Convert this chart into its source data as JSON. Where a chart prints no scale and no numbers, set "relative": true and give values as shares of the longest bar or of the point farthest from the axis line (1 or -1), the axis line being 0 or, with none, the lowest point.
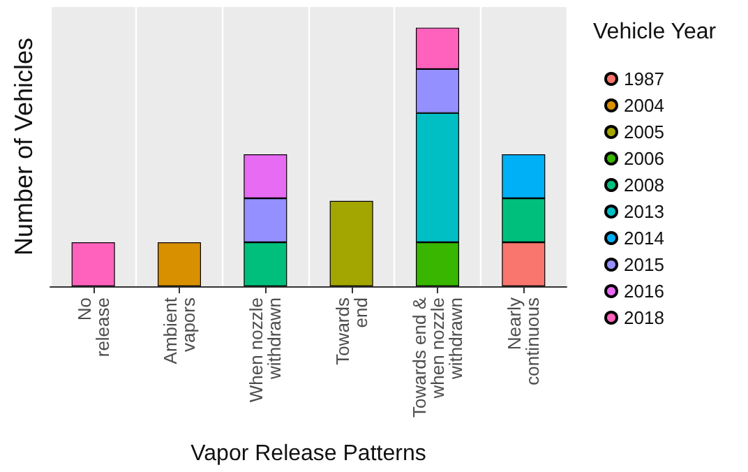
{
  "chart_data": {
    "type": "bar",
    "stacked": true,
    "relative": true,
    "xlabel": "Vapor Release Patterns",
    "ylabel": "Number of Vehicles",
    "legend_title": "Vehicle Year",
    "legend": "right",
    "grid": "x",
    "categories": [
      "No\nrelease",
      "Ambient\nvapors",
      "When nozzle\nwithdrawn",
      "Towards\nend",
      "Towards end &\nwhen nozzle\nwithdrawn",
      "Nearly\ncontinuous"
    ],
    "series": [
      {
        "name": "1987",
        "color": "#f8766d",
        "values": [
          null,
          null,
          null,
          null,
          null,
          0.17
        ]
      },
      {
        "name": "2004",
        "color": "#d89000",
        "values": [
          null,
          0.17,
          null,
          null,
          null,
          null
        ]
      },
      {
        "name": "2005",
        "color": "#a3a500",
        "values": [
          null,
          null,
          null,
          0.33,
          null,
          null
        ]
      },
      {
        "name": "2006",
        "color": "#39b600",
        "values": [
          null,
          null,
          null,
          null,
          0.17,
          null
        ]
      },
      {
        "name": "2008",
        "color": "#00bf7d",
        "values": [
          null,
          null,
          0.17,
          null,
          null,
          0.17
        ]
      },
      {
        "name": "2013",
        "color": "#00bfc4",
        "values": [
          null,
          null,
          null,
          null,
          0.5,
          null
        ]
      },
      {
        "name": "2014",
        "color": "#00b0f6",
        "values": [
          null,
          null,
          null,
          null,
          null,
          0.17
        ]
      },
      {
        "name": "2015",
        "color": "#9590ff",
        "values": [
          null,
          null,
          0.17,
          null,
          0.17,
          null
        ]
      },
      {
        "name": "2016",
        "color": "#e76bf3",
        "values": [
          null,
          null,
          0.17,
          null,
          null,
          null
        ]
      },
      {
        "name": "2018",
        "color": "#ff62bc",
        "values": [
          0.17,
          null,
          null,
          null,
          0.16,
          null
        ]
      }
    ]
  }
}
